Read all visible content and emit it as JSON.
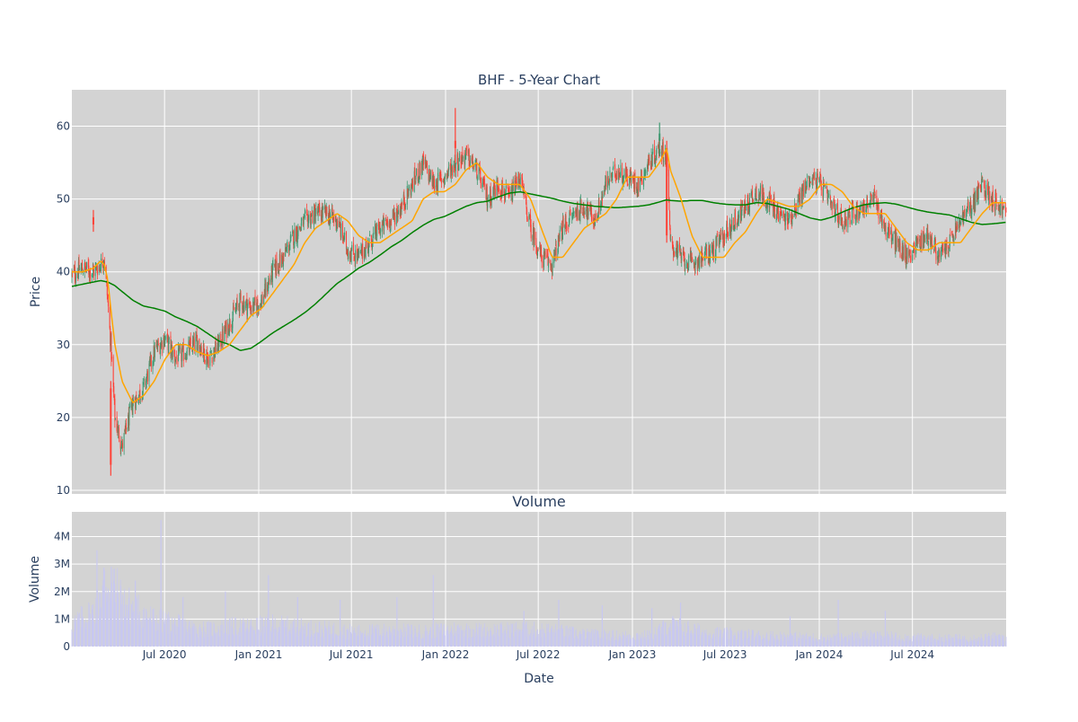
{
  "chart_data": [
    {
      "type": "candlestick",
      "title": "BHF - 5-Year Chart",
      "xlabel": "",
      "ylabel": "Price",
      "ylim": [
        9.5,
        65
      ],
      "yticks": [
        10,
        20,
        30,
        40,
        50,
        60
      ],
      "xlim": [
        "2020-01-02",
        "2024-12-31"
      ],
      "xticks": [
        {
          "date": "2020-07-01",
          "label": "Jul 2020"
        },
        {
          "date": "2021-01-01",
          "label": "Jan 2021"
        },
        {
          "date": "2021-07-01",
          "label": "Jul 2021"
        },
        {
          "date": "2022-01-01",
          "label": "Jan 2022"
        },
        {
          "date": "2022-07-01",
          "label": "Jul 2022"
        },
        {
          "date": "2023-01-01",
          "label": "Jan 2023"
        },
        {
          "date": "2023-07-01",
          "label": "Jul 2023"
        },
        {
          "date": "2024-01-01",
          "label": "Jan 2024"
        },
        {
          "date": "2024-07-01",
          "label": "Jul 2024"
        }
      ],
      "grid": true,
      "plot_background": "#d3d3d3",
      "colors": {
        "increasing": "#3d9970",
        "decreasing": "#ff4136",
        "ma_short": "#ffa500",
        "ma_long": "#008000"
      },
      "price_series": {
        "dates": [
          "2020-01-02",
          "2020-01-23",
          "2020-02-13",
          "2020-02-27",
          "2020-03-05",
          "2020-03-12",
          "2020-03-18",
          "2020-03-26",
          "2020-04-09",
          "2020-04-30",
          "2020-05-21",
          "2020-06-11",
          "2020-07-02",
          "2020-07-23",
          "2020-08-13",
          "2020-09-03",
          "2020-09-24",
          "2020-10-15",
          "2020-11-05",
          "2020-11-26",
          "2020-12-17",
          "2021-01-07",
          "2021-01-28",
          "2021-02-18",
          "2021-03-11",
          "2021-04-01",
          "2021-04-22",
          "2021-05-13",
          "2021-06-03",
          "2021-06-24",
          "2021-07-15",
          "2021-08-05",
          "2021-08-26",
          "2021-09-16",
          "2021-10-07",
          "2021-10-28",
          "2021-11-18",
          "2021-12-09",
          "2021-12-30",
          "2022-01-20",
          "2022-02-10",
          "2022-03-03",
          "2022-03-24",
          "2022-04-14",
          "2022-05-05",
          "2022-05-26",
          "2022-06-16",
          "2022-07-07",
          "2022-07-28",
          "2022-08-18",
          "2022-09-08",
          "2022-09-29",
          "2022-10-20",
          "2022-11-10",
          "2022-12-01",
          "2022-12-22",
          "2023-01-12",
          "2023-02-02",
          "2023-02-23",
          "2023-03-09",
          "2023-03-16",
          "2023-04-06",
          "2023-04-27",
          "2023-05-18",
          "2023-06-08",
          "2023-06-29",
          "2023-07-20",
          "2023-08-10",
          "2023-08-31",
          "2023-09-21",
          "2023-10-12",
          "2023-11-02",
          "2023-11-23",
          "2023-12-14",
          "2024-01-04",
          "2024-01-25",
          "2024-02-15",
          "2024-03-07",
          "2024-03-28",
          "2024-04-18",
          "2024-05-09",
          "2024-05-30",
          "2024-06-20",
          "2024-07-11",
          "2024-08-01",
          "2024-08-22",
          "2024-09-12",
          "2024-10-03",
          "2024-10-24",
          "2024-11-14",
          "2024-12-05",
          "2024-12-31"
        ],
        "close": [
          39.5,
          40.5,
          40,
          41,
          42,
          36,
          30,
          20,
          16,
          22,
          24,
          29,
          31,
          28,
          29,
          30.5,
          28,
          30,
          33,
          36,
          35,
          36,
          40,
          42,
          45,
          47,
          48,
          48,
          47,
          43,
          42,
          44,
          46,
          47,
          49,
          52,
          55,
          52,
          53,
          55,
          56,
          54,
          50,
          52,
          50,
          53,
          46,
          42,
          41,
          46,
          48,
          49,
          47,
          52,
          54,
          53,
          52,
          55,
          57,
          56,
          44,
          42,
          41,
          42,
          43,
          45,
          47,
          49,
          51,
          50,
          48,
          47,
          50,
          53,
          52,
          49,
          47,
          48,
          49,
          50,
          46,
          44,
          42,
          44,
          45,
          42,
          44,
          47,
          49,
          52,
          50,
          48
        ],
        "ma_short": [
          40,
          40,
          40.5,
          41.5,
          41,
          39,
          35,
          30,
          25,
          22,
          23,
          25,
          28,
          30,
          30,
          29,
          28.5,
          29,
          30,
          32,
          34,
          35,
          37,
          39,
          41,
          44,
          46,
          47,
          48,
          47,
          45,
          44,
          44,
          45,
          46,
          47,
          50,
          51,
          51,
          52,
          54,
          55,
          53,
          52,
          52,
          52,
          50,
          46,
          42,
          42,
          44,
          46,
          47,
          48,
          50,
          53,
          53,
          53,
          55,
          57,
          54,
          50,
          45,
          42,
          42,
          42,
          44,
          45.5,
          48,
          50,
          49.5,
          49,
          49,
          50,
          52,
          52,
          51,
          49,
          48,
          48,
          48,
          46,
          44,
          43,
          43,
          44,
          44,
          44,
          46,
          48,
          49.5,
          49.5
        ],
        "ma_long": [
          38,
          38.3,
          38.6,
          38.8,
          38.7,
          38.6,
          38.4,
          38.1,
          37.3,
          36.1,
          35.3,
          35,
          34.6,
          33.8,
          33.2,
          32.5,
          31.5,
          30.5,
          30,
          29.2,
          29.5,
          30.5,
          31.6,
          32.5,
          33.4,
          34.4,
          35.6,
          37,
          38.4,
          39.4,
          40.5,
          41.3,
          42.3,
          43.4,
          44.3,
          45.4,
          46.4,
          47.2,
          47.6,
          48.3,
          49,
          49.5,
          49.7,
          50.3,
          50.8,
          51,
          50.7,
          50.4,
          50.1,
          49.7,
          49.4,
          49.2,
          49,
          48.9,
          48.8,
          48.9,
          49,
          49.2,
          49.6,
          49.9,
          49.8,
          49.7,
          49.8,
          49.8,
          49.5,
          49.3,
          49.2,
          49.2,
          49.5,
          49.4,
          49,
          48.6,
          48,
          47.4,
          47.1,
          47.5,
          48.2,
          48.8,
          49.2,
          49.4,
          49.5,
          49.3,
          48.9,
          48.5,
          48.2,
          48,
          47.8,
          47.3,
          46.8,
          46.5,
          46.6,
          46.8
        ]
      },
      "markers": [
        {
          "date": "2020-02-13",
          "open": 47.5,
          "high": 48.5,
          "low": 45.5,
          "close": 46.5
        },
        {
          "date": "2020-03-18",
          "open": 24,
          "high": 25,
          "low": 12,
          "close": 13.5
        },
        {
          "date": "2022-01-20",
          "open": 58,
          "high": 62.5,
          "low": 55,
          "close": 57
        },
        {
          "date": "2023-02-23",
          "open": 58,
          "high": 60.5,
          "low": 56,
          "close": 59
        },
        {
          "date": "2023-03-09",
          "open": 57,
          "high": 58,
          "low": 44,
          "close": 45
        }
      ]
    },
    {
      "type": "bar",
      "title": "Volume",
      "xlabel": "Date",
      "ylabel": "Volume",
      "ylim": [
        0,
        4900000
      ],
      "yticks": [
        {
          "value": 0,
          "label": "0"
        },
        {
          "value": 1000000,
          "label": "1M"
        },
        {
          "value": 2000000,
          "label": "2M"
        },
        {
          "value": 3000000,
          "label": "3M"
        },
        {
          "value": 4000000,
          "label": "4M"
        }
      ],
      "grid": true,
      "plot_background": "#d3d3d3",
      "bar_color": "#c8c8f0",
      "volume_profile": {
        "dates": [
          "2020-01-02",
          "2020-02-13",
          "2020-03-05",
          "2020-03-12",
          "2020-03-18",
          "2020-04-09",
          "2020-05-07",
          "2020-06-11",
          "2020-07-02",
          "2020-08-13",
          "2020-09-24",
          "2020-11-05",
          "2020-12-17",
          "2021-01-28",
          "2021-03-11",
          "2021-05-13",
          "2021-07-15",
          "2021-09-16",
          "2021-11-18",
          "2022-01-20",
          "2022-03-24",
          "2022-05-26",
          "2022-07-28",
          "2022-09-29",
          "2022-12-01",
          "2023-02-02",
          "2023-03-16",
          "2023-05-18",
          "2023-07-20",
          "2023-09-21",
          "2023-11-23",
          "2024-01-25",
          "2024-03-28",
          "2024-05-30",
          "2024-08-01",
          "2024-10-03",
          "2024-12-31"
        ],
        "values": [
          900000,
          1400000,
          2600000,
          2500000,
          2700000,
          1800000,
          1500000,
          1100000,
          1000000,
          800000,
          700000,
          800000,
          800000,
          900000,
          800000,
          700000,
          600000,
          650000,
          600000,
          700000,
          650000,
          700000,
          650000,
          500000,
          450000,
          450000,
          900000,
          600000,
          500000,
          450000,
          400000,
          350000,
          450000,
          400000,
          350000,
          350000,
          400000
        ]
      },
      "spikes": [
        {
          "date": "2020-02-20",
          "value": 3500000
        },
        {
          "date": "2020-03-19",
          "value": 2900000
        },
        {
          "date": "2020-05-05",
          "value": 2400000
        },
        {
          "date": "2020-06-24",
          "value": 4600000
        },
        {
          "date": "2020-08-06",
          "value": 1800000
        },
        {
          "date": "2020-10-28",
          "value": 2000000
        },
        {
          "date": "2021-01-20",
          "value": 2600000
        },
        {
          "date": "2021-03-18",
          "value": 1800000
        },
        {
          "date": "2021-06-09",
          "value": 1700000
        },
        {
          "date": "2021-09-28",
          "value": 1800000
        },
        {
          "date": "2021-12-08",
          "value": 2600000
        },
        {
          "date": "2022-06-03",
          "value": 1300000
        },
        {
          "date": "2022-08-10",
          "value": 1700000
        },
        {
          "date": "2022-11-03",
          "value": 1500000
        },
        {
          "date": "2023-02-08",
          "value": 1400000
        },
        {
          "date": "2023-04-05",
          "value": 1600000
        },
        {
          "date": "2023-11-05",
          "value": 1100000
        },
        {
          "date": "2024-02-07",
          "value": 1700000
        },
        {
          "date": "2024-05-09",
          "value": 1300000
        }
      ]
    }
  ]
}
